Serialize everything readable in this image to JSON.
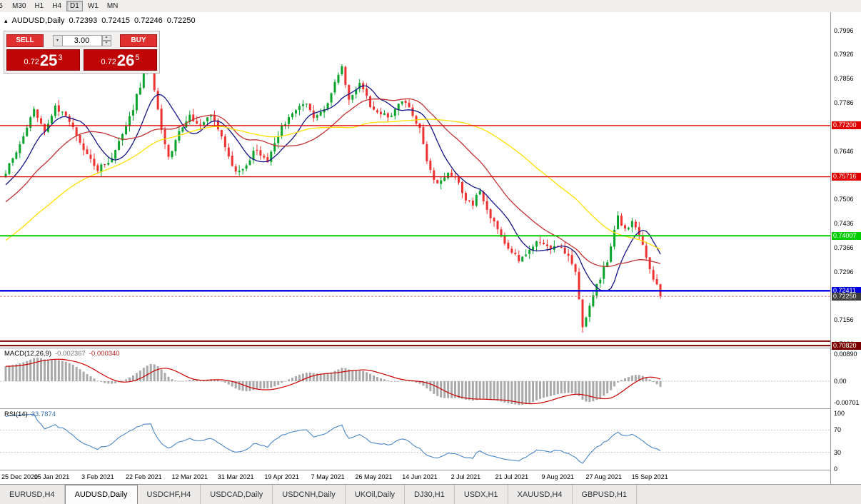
{
  "toolbar": {
    "timeframes": [
      "5",
      "M30",
      "H1",
      "H4",
      "D1",
      "W1",
      "MN"
    ],
    "active": "D1"
  },
  "header": {
    "collapse_icon": "▴",
    "symbol": "AUDUSD,Daily",
    "open": "0.72393",
    "high": "0.72415",
    "low": "0.72246",
    "close": "0.72250"
  },
  "trade": {
    "sell_label": "SELL",
    "buy_label": "BUY",
    "volume": "3.00",
    "dropdown_icon": "▾",
    "spinner_up_icon": "▴",
    "spinner_down_icon": "▾",
    "sell_price": {
      "prefix": "0.72",
      "big": "25",
      "sup": "3"
    },
    "buy_price": {
      "prefix": "0.72",
      "big": "26",
      "sup": "5"
    }
  },
  "chart_data": {
    "type": "candlestick",
    "symbol": "AUDUSD",
    "timeframe": "Daily",
    "current": {
      "open": 0.72393,
      "high": 0.72415,
      "low": 0.72246,
      "close": 0.7225
    },
    "price_axis_ticks": [
      "0.7996",
      "0.7926",
      "0.7856",
      "0.7786",
      "0.7716",
      "0.7646",
      "0.7576",
      "0.7506",
      "0.7436",
      "0.7366",
      "0.7296",
      "0.7226",
      "0.7156",
      "0.7086"
    ],
    "candle_count": 186,
    "up_color": "#0aa32b",
    "down_color": "#ee3030",
    "anchors": [
      [
        0,
        0.7585
      ],
      [
        4,
        0.7665
      ],
      [
        8,
        0.777
      ],
      [
        11,
        0.7705
      ],
      [
        14,
        0.7775
      ],
      [
        18,
        0.773
      ],
      [
        22,
        0.765
      ],
      [
        26,
        0.759
      ],
      [
        30,
        0.763
      ],
      [
        35,
        0.774
      ],
      [
        39,
        0.787
      ],
      [
        41,
        0.7885
      ],
      [
        43,
        0.776
      ],
      [
        46,
        0.7625
      ],
      [
        49,
        0.77
      ],
      [
        52,
        0.775
      ],
      [
        55,
        0.7715
      ],
      [
        58,
        0.7755
      ],
      [
        61,
        0.769
      ],
      [
        65,
        0.758
      ],
      [
        68,
        0.761
      ],
      [
        71,
        0.7655
      ],
      [
        74,
        0.761
      ],
      [
        78,
        0.772
      ],
      [
        82,
        0.7765
      ],
      [
        85,
        0.779
      ],
      [
        87,
        0.7745
      ],
      [
        91,
        0.778
      ],
      [
        93,
        0.7845
      ],
      [
        95,
        0.7885
      ],
      [
        97,
        0.78
      ],
      [
        100,
        0.7845
      ],
      [
        104,
        0.776
      ],
      [
        108,
        0.7745
      ],
      [
        112,
        0.779
      ],
      [
        115,
        0.7755
      ],
      [
        117,
        0.771
      ],
      [
        119,
        0.762
      ],
      [
        122,
        0.7545
      ],
      [
        125,
        0.7585
      ],
      [
        128,
        0.7555
      ],
      [
        130,
        0.751
      ],
      [
        132,
        0.749
      ],
      [
        134,
        0.7535
      ],
      [
        137,
        0.7455
      ],
      [
        140,
        0.74
      ],
      [
        143,
        0.735
      ],
      [
        145,
        0.733
      ],
      [
        148,
        0.7365
      ],
      [
        151,
        0.7385
      ],
      [
        154,
        0.736
      ],
      [
        157,
        0.737
      ],
      [
        159,
        0.734
      ],
      [
        161,
        0.729
      ],
      [
        162,
        0.721
      ],
      [
        163,
        0.713
      ],
      [
        164,
        0.716
      ],
      [
        166,
        0.723
      ],
      [
        168,
        0.728
      ],
      [
        170,
        0.733
      ],
      [
        172,
        0.7415
      ],
      [
        173,
        0.746
      ],
      [
        175,
        0.7415
      ],
      [
        177,
        0.744
      ],
      [
        179,
        0.74
      ],
      [
        181,
        0.734
      ],
      [
        183,
        0.728
      ],
      [
        185,
        0.7225
      ]
    ],
    "hlines": [
      {
        "price": 0.772,
        "label": "0.77200",
        "color": "#e00000",
        "w": 1.4
      },
      {
        "price": 0.75716,
        "label": "0.75716",
        "color": "#e00000",
        "w": 1.2
      },
      {
        "price": 0.74007,
        "label": "0.74007",
        "color": "#00cc00",
        "w": 2
      },
      {
        "price": 0.72411,
        "label": "0.72411",
        "color": "#0000dd",
        "w": 2.4
      },
      {
        "price": 0.7095,
        "label": "",
        "color": "#7a0000",
        "w": 2
      },
      {
        "price": 0.7082,
        "label": "0.70820",
        "color": "#7a0000",
        "w": 2
      }
    ],
    "current_price": {
      "value": 0.7225,
      "label": "0.72250",
      "box_color": "#3c3c3c"
    },
    "mas": [
      {
        "period": 10,
        "color": "#141487"
      },
      {
        "period": 24,
        "color": "#c23232"
      },
      {
        "period": 55,
        "color": "#ffdf00"
      }
    ],
    "macd": {
      "title": "MACD(12,26,9)",
      "value_main": "-0.002367",
      "value_signal": "-0.000340",
      "axis_labels": [
        "0.00890",
        "0.00",
        "-0.00701"
      ],
      "fast": 12,
      "slow": 26,
      "signal": 9,
      "bar_color": "#a9a9a9",
      "line_color": "#cc0000"
    },
    "rsi": {
      "title": "RSI(14)",
      "value": "33.7874",
      "axis_labels": [
        "100",
        "70",
        "30",
        "0"
      ],
      "period": 14,
      "line_color": "#4a86c8",
      "levels": [
        70,
        30
      ]
    },
    "dates": [
      "25 Dec 2020",
      "15 Jan 2021",
      "3 Feb 2021",
      "22 Feb 2021",
      "12 Mar 2021",
      "31 Mar 2021",
      "19 Apr 2021",
      "7 May 2021",
      "26 May 2021",
      "14 Jun 2021",
      "2 Jul 2021",
      "21 Jul 2021",
      "9 Aug 2021",
      "27 Aug 2021",
      "15 Sep 2021"
    ]
  },
  "tabs": {
    "items": [
      "EURUSD,H4",
      "AUDUSD,Daily",
      "USDCHF,H4",
      "USDCAD,Daily",
      "USDCNH,Daily",
      "UKOil,Daily",
      "DJ30,H1",
      "USDX,H1",
      "XAUUSD,H4",
      "GBPUSD,H1"
    ],
    "active": "AUDUSD,Daily"
  }
}
